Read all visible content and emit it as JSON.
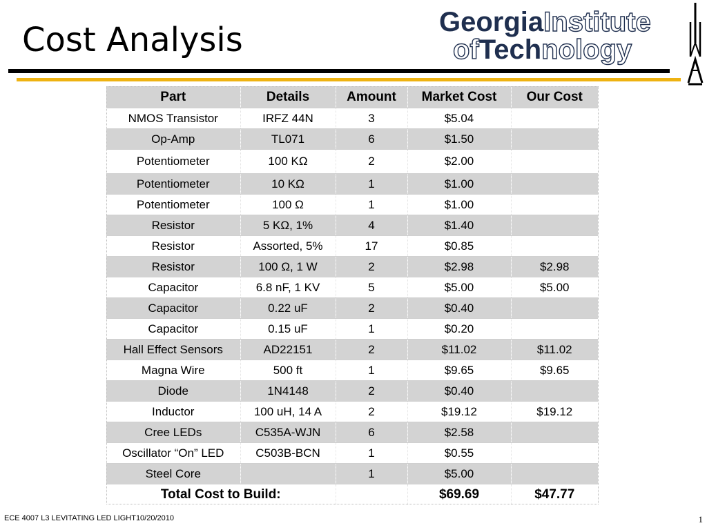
{
  "slide": {
    "title": "Cost Analysis",
    "logo": {
      "word1": "Georgia",
      "word2": "Institute",
      "word3": "of",
      "word4": "Tech",
      "word5": "nology",
      "icon": "gt-tower-icon"
    },
    "colors": {
      "rule_black": "#000000",
      "rule_gold": "#EEB211",
      "logo_navy": "#1f2f4f",
      "row_shade": "#d3d3d3"
    }
  },
  "table": {
    "headers": [
      "Part",
      "Details",
      "Amount",
      "Market Cost",
      "Our Cost"
    ],
    "rows": [
      [
        "NMOS Transistor",
        "IRFZ 44N",
        "3",
        "$5.04",
        ""
      ],
      [
        "Op-Amp",
        "TL071",
        "6",
        "$1.50",
        ""
      ],
      [
        "Potentiometer",
        "100 KΩ",
        "2",
        "$2.00",
        ""
      ],
      [
        "Potentiometer",
        "10 KΩ",
        "1",
        "$1.00",
        ""
      ],
      [
        "Potentiometer",
        "100 Ω",
        "1",
        "$1.00",
        ""
      ],
      [
        "Resistor",
        "5 KΩ, 1%",
        "4",
        "$1.40",
        ""
      ],
      [
        "Resistor",
        "Assorted, 5%",
        "17",
        "$0.85",
        ""
      ],
      [
        "Resistor",
        "100 Ω, 1 W",
        "2",
        "$2.98",
        "$2.98"
      ],
      [
        "Capacitor",
        "6.8 nF, 1 KV",
        "5",
        "$5.00",
        "$5.00"
      ],
      [
        "Capacitor",
        "0.22 uF",
        "2",
        "$0.40",
        ""
      ],
      [
        "Capacitor",
        "0.15 uF",
        "1",
        "$0.20",
        ""
      ],
      [
        "Hall Effect Sensors",
        "AD22151",
        "2",
        "$11.02",
        "$11.02"
      ],
      [
        "Magna Wire",
        "500 ft",
        "1",
        "$9.65",
        "$9.65"
      ],
      [
        "Diode",
        "1N4148",
        "2",
        "$0.40",
        ""
      ],
      [
        "Inductor",
        "100 uH, 14 A",
        "2",
        "$19.12",
        "$19.12"
      ],
      [
        "Cree LEDs",
        "C535A-WJN",
        "6",
        "$2.58",
        ""
      ],
      [
        "Oscillator “On” LED",
        "C503B-BCN",
        "1",
        "$0.55",
        ""
      ],
      [
        "Steel Core",
        "",
        "1",
        "$5.00",
        ""
      ]
    ],
    "total": {
      "label": "Total Cost to Build:",
      "market_cost": "$69.69",
      "our_cost": "$47.77"
    }
  },
  "footer": {
    "left": "ECE 4007 L3  LEVITATING LED LIGHT10/20/2010",
    "page_number": "1"
  }
}
